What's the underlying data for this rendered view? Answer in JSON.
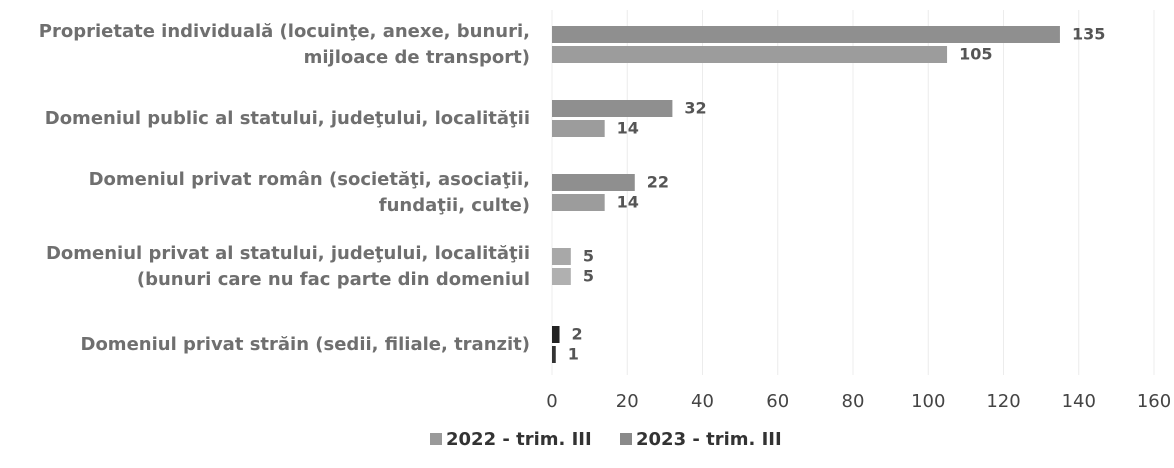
{
  "chart_data": {
    "type": "hbar",
    "categories": [
      [
        "Proprietate individuală (locuinţe, anexe, bunuri,",
        "mijloace de transport)"
      ],
      [
        "Domeniul public al statului, judeţului, localităţii"
      ],
      [
        "Domeniul privat român (societăţi, asociaţii,",
        "fundaţii, culte)"
      ],
      [
        "Domeniul privat al statului, judeţului, localităţii",
        "(bunuri care nu fac parte din domeniul"
      ],
      [
        "Domeniul privat străin (sedii, filiale, tranzit)"
      ]
    ],
    "series": [
      {
        "name": "2022 - trim. III",
        "color": "#9a9a9a",
        "colors": [
          "#8f8f8f",
          "#8f8f8f",
          "#8f8f8f",
          "#a8a8a8",
          "#222222"
        ],
        "values": [
          135,
          32,
          22,
          5,
          2
        ]
      },
      {
        "name": "2023 - trim. III",
        "color": "#8a8a8a",
        "colors": [
          "#9c9c9c",
          "#9c9c9c",
          "#9c9c9c",
          "#b0b0b0",
          "#333333"
        ],
        "values": [
          105,
          14,
          14,
          5,
          1
        ]
      }
    ],
    "xlim": [
      0,
      160
    ],
    "xticks": [
      0,
      20,
      40,
      60,
      80,
      100,
      120,
      140,
      160
    ],
    "grid": true
  }
}
